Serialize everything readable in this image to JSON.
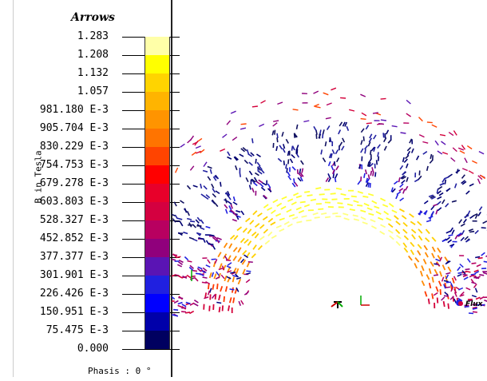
{
  "legend": {
    "title": "Arrows",
    "axis_label": "B in Tesla",
    "phase_text": "Phasis : 0 °",
    "levels": [
      "1.283",
      "1.208",
      "1.132",
      "1.057",
      "981.180 E-3",
      "905.704 E-3",
      "830.229 E-3",
      "754.753 E-3",
      "679.278 E-3",
      "603.803 E-3",
      "528.327 E-3",
      "452.852 E-3",
      "377.377 E-3",
      "301.901 E-3",
      "226.426 E-3",
      "150.951 E-3",
      "75.475 E-3",
      "0.000"
    ],
    "colors": [
      "#ffffa8",
      "#ffff00",
      "#ffd400",
      "#ffb400",
      "#ff9400",
      "#ff7400",
      "#ff4400",
      "#ff0000",
      "#e8002a",
      "#d40040",
      "#b80060",
      "#90007c",
      "#5a14b4",
      "#2020e0",
      "#0000ff",
      "#0000aa",
      "#000060"
    ]
  },
  "plot": {
    "flux_label": "Flux"
  }
}
